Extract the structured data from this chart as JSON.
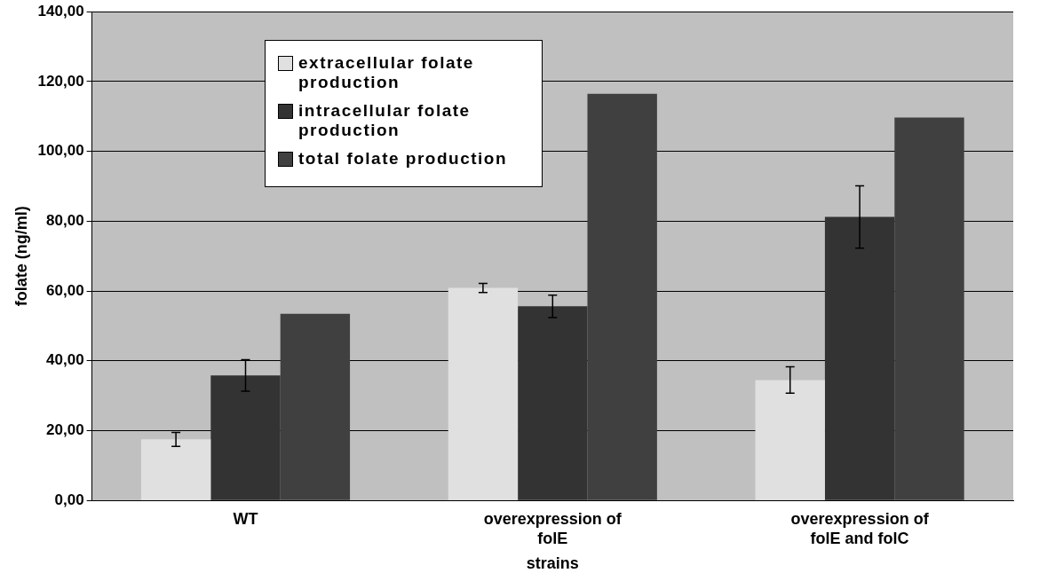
{
  "chart_data": {
    "type": "bar",
    "xlabel": "strains",
    "ylabel": "folate (ng/ml)",
    "categories": [
      "WT",
      "overexpression of folE",
      "overexpression of folE and folC"
    ],
    "series": [
      {
        "name": "extracellular folate production",
        "color": "#e0e0e0",
        "values": [
          17.5,
          60.9,
          34.5
        ],
        "errors": [
          2,
          1.3,
          3.8
        ]
      },
      {
        "name": "intracellular folate production",
        "color": "#333333",
        "values": [
          35.8,
          55.6,
          81.2
        ],
        "errors": [
          4.5,
          3.2,
          8.9
        ]
      },
      {
        "name": "total folate production",
        "color": "#404040",
        "values": [
          53.5,
          116.5,
          109.7
        ]
      }
    ],
    "ylim": [
      0,
      140
    ],
    "yticks": [
      {
        "value": 0,
        "label": "0,00"
      },
      {
        "value": 20,
        "label": "20,00"
      },
      {
        "value": 40,
        "label": "40,00"
      },
      {
        "value": 60,
        "label": "60,00"
      },
      {
        "value": 80,
        "label": "80,00"
      },
      {
        "value": 100,
        "label": "100,00"
      },
      {
        "value": 120,
        "label": "120,00"
      },
      {
        "value": 140,
        "label": "140,00"
      }
    ],
    "grid": "y",
    "legend": "top left"
  }
}
